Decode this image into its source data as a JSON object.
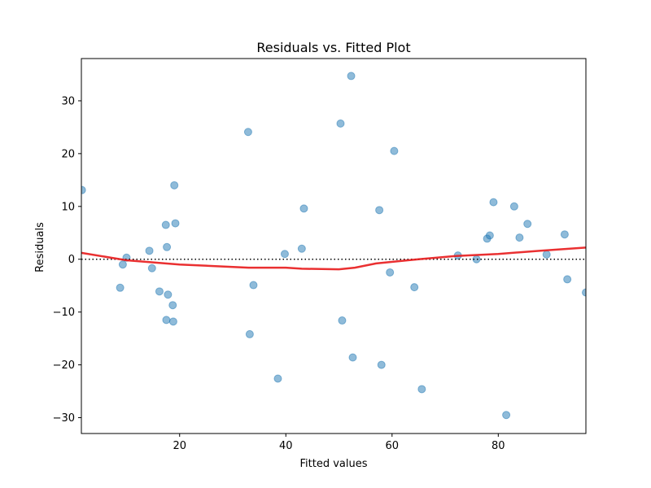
{
  "chart_data": {
    "type": "scatter",
    "title": "Residuals vs. Fitted Plot",
    "xlabel": "Fitted values",
    "ylabel": "Residuals",
    "xlim": [
      1.5,
      96.5
    ],
    "ylim": [
      -33,
      38
    ],
    "xticks": [
      20,
      40,
      60,
      80
    ],
    "yticks": [
      -30,
      -20,
      -10,
      0,
      10,
      20,
      30
    ],
    "grid": false,
    "point_color": "#1f77b4",
    "smooth_color": "#e8191b",
    "points": [
      {
        "x": 1.6,
        "y": 13.1
      },
      {
        "x": 8.8,
        "y": -5.4
      },
      {
        "x": 9.3,
        "y": -1.0
      },
      {
        "x": 10.0,
        "y": 0.3
      },
      {
        "x": 14.3,
        "y": 1.6
      },
      {
        "x": 14.8,
        "y": -1.7
      },
      {
        "x": 16.2,
        "y": -6.1
      },
      {
        "x": 17.4,
        "y": 6.5
      },
      {
        "x": 17.5,
        "y": -11.5
      },
      {
        "x": 17.6,
        "y": 2.3
      },
      {
        "x": 17.8,
        "y": -6.7
      },
      {
        "x": 18.7,
        "y": -8.7
      },
      {
        "x": 18.8,
        "y": -11.8
      },
      {
        "x": 19.0,
        "y": 14.0
      },
      {
        "x": 19.2,
        "y": 6.8
      },
      {
        "x": 32.9,
        "y": 24.1
      },
      {
        "x": 33.2,
        "y": -14.2
      },
      {
        "x": 33.9,
        "y": -4.9
      },
      {
        "x": 38.5,
        "y": -22.6
      },
      {
        "x": 39.8,
        "y": 1.0
      },
      {
        "x": 43.0,
        "y": 2.0
      },
      {
        "x": 43.4,
        "y": 9.6
      },
      {
        "x": 50.3,
        "y": 25.7
      },
      {
        "x": 50.6,
        "y": -11.6
      },
      {
        "x": 52.3,
        "y": 34.7
      },
      {
        "x": 52.6,
        "y": -18.6
      },
      {
        "x": 57.6,
        "y": 9.3
      },
      {
        "x": 58.0,
        "y": -20.0
      },
      {
        "x": 59.6,
        "y": -2.5
      },
      {
        "x": 60.4,
        "y": 20.5
      },
      {
        "x": 64.2,
        "y": -5.3
      },
      {
        "x": 65.6,
        "y": -24.6
      },
      {
        "x": 72.4,
        "y": 0.7
      },
      {
        "x": 75.9,
        "y": 0.0
      },
      {
        "x": 77.9,
        "y": 3.9
      },
      {
        "x": 78.4,
        "y": 4.5
      },
      {
        "x": 79.1,
        "y": 10.8
      },
      {
        "x": 81.5,
        "y": -29.5
      },
      {
        "x": 83.0,
        "y": 10.0
      },
      {
        "x": 84.0,
        "y": 4.1
      },
      {
        "x": 85.5,
        "y": 6.7
      },
      {
        "x": 89.1,
        "y": 0.9
      },
      {
        "x": 92.5,
        "y": 4.7
      },
      {
        "x": 93.0,
        "y": -3.8
      },
      {
        "x": 96.5,
        "y": -6.3
      }
    ],
    "smooth_line": [
      {
        "x": 1.5,
        "y": 1.2
      },
      {
        "x": 10.0,
        "y": -0.2
      },
      {
        "x": 20.0,
        "y": -1.0
      },
      {
        "x": 33.0,
        "y": -1.6
      },
      {
        "x": 40.0,
        "y": -1.6
      },
      {
        "x": 43.0,
        "y": -1.8
      },
      {
        "x": 50.0,
        "y": -1.9
      },
      {
        "x": 53.0,
        "y": -1.6
      },
      {
        "x": 57.0,
        "y": -0.8
      },
      {
        "x": 65.0,
        "y": 0.0
      },
      {
        "x": 72.0,
        "y": 0.6
      },
      {
        "x": 80.0,
        "y": 1.0
      },
      {
        "x": 88.0,
        "y": 1.6
      },
      {
        "x": 96.5,
        "y": 2.2
      }
    ],
    "reference_line": {
      "y": 0,
      "style": "dotted",
      "color": "#000000"
    }
  }
}
